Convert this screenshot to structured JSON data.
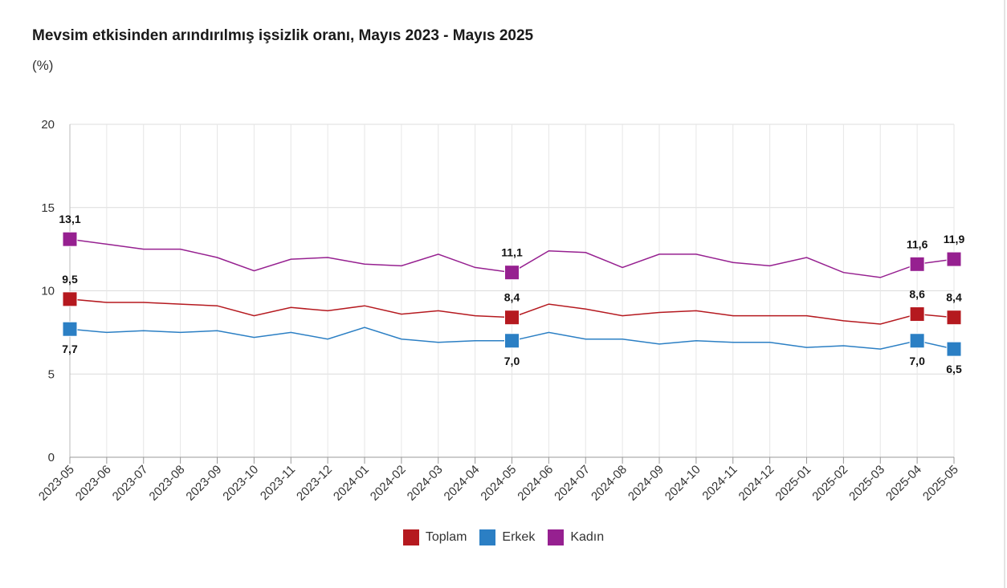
{
  "title": "Mevsim etkisinden arındırılmış işsizlik oranı, Mayıs 2023 - Mayıs 2025",
  "subtitle": "(%)",
  "chart_data": {
    "type": "line",
    "title": "Mevsim etkisinden arındırılmış işsizlik oranı, Mayıs 2023 - Mayıs 2025",
    "ylabel": "(%)",
    "xlabel": "",
    "ylim": [
      0,
      20
    ],
    "yticks": [
      0,
      5,
      10,
      15,
      20
    ],
    "grid": true,
    "legend": "bottom",
    "x": [
      "2023-05",
      "2023-06",
      "2023-07",
      "2023-08",
      "2023-09",
      "2023-10",
      "2023-11",
      "2023-12",
      "2024-01",
      "2024-02",
      "2024-03",
      "2024-04",
      "2024-05",
      "2024-06",
      "2024-07",
      "2024-08",
      "2024-09",
      "2024-10",
      "2024-11",
      "2024-12",
      "2025-01",
      "2025-02",
      "2025-03",
      "2025-04",
      "2025-05"
    ],
    "series": [
      {
        "name": "Toplam",
        "color": "#b5191f",
        "values": [
          9.5,
          9.3,
          9.3,
          9.2,
          9.1,
          8.5,
          9.0,
          8.8,
          9.1,
          8.6,
          8.8,
          8.5,
          8.4,
          9.2,
          8.9,
          8.5,
          8.7,
          8.8,
          8.5,
          8.5,
          8.5,
          8.2,
          8.0,
          8.6,
          8.4
        ],
        "labels": [
          {
            "index": 0,
            "text": "9,5",
            "pos": "above"
          },
          {
            "index": 12,
            "text": "8,4",
            "pos": "above"
          },
          {
            "index": 23,
            "text": "8,6",
            "pos": "above"
          },
          {
            "index": 24,
            "text": "8,4",
            "pos": "above"
          }
        ]
      },
      {
        "name": "Erkek",
        "color": "#2b7fc4",
        "values": [
          7.7,
          7.5,
          7.6,
          7.5,
          7.6,
          7.2,
          7.5,
          7.1,
          7.8,
          7.1,
          6.9,
          7.0,
          7.0,
          7.5,
          7.1,
          7.1,
          6.8,
          7.0,
          6.9,
          6.9,
          6.6,
          6.7,
          6.5,
          7.0,
          6.5
        ],
        "labels": [
          {
            "index": 0,
            "text": "7,7",
            "pos": "below"
          },
          {
            "index": 12,
            "text": "7,0",
            "pos": "below"
          },
          {
            "index": 23,
            "text": "7,0",
            "pos": "below"
          },
          {
            "index": 24,
            "text": "6,5",
            "pos": "below"
          }
        ]
      },
      {
        "name": "Kadın",
        "color": "#962090",
        "values": [
          13.1,
          12.8,
          12.5,
          12.5,
          12.0,
          11.2,
          11.9,
          12.0,
          11.6,
          11.5,
          12.2,
          11.4,
          11.1,
          12.4,
          12.3,
          11.4,
          12.2,
          12.2,
          11.7,
          11.5,
          12.0,
          11.1,
          10.8,
          11.6,
          11.9
        ],
        "labels": [
          {
            "index": 0,
            "text": "13,1",
            "pos": "above"
          },
          {
            "index": 12,
            "text": "11,1",
            "pos": "above"
          },
          {
            "index": 23,
            "text": "11,6",
            "pos": "above"
          },
          {
            "index": 24,
            "text": "11,9",
            "pos": "above"
          }
        ]
      }
    ],
    "markers_at": [
      0,
      12,
      23,
      24
    ]
  }
}
